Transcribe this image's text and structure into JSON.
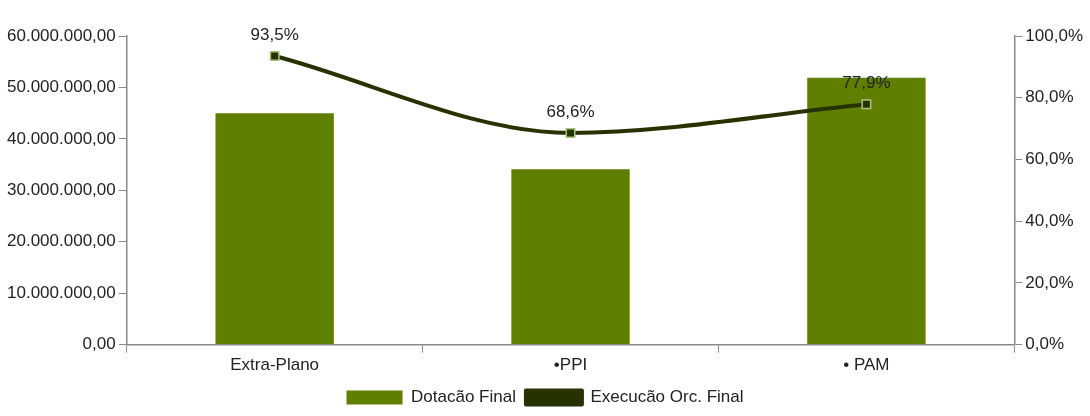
{
  "chart_data": {
    "type": "bar",
    "categories": [
      "Extra-Plano",
      "•PPI",
      "• PAM"
    ],
    "series": [
      {
        "name": "Dotacão Final",
        "color": "#5f7f00",
        "values": [
          45000000,
          34100000,
          51900000
        ]
      },
      {
        "name": "Execucão Orc. Final",
        "type": "line",
        "axis": "y2",
        "color": "#263300",
        "marker": "square",
        "values": [
          93.5,
          68.6,
          77.9
        ],
        "value_labels": [
          "93,5%",
          "68,6%",
          "77,9%"
        ]
      }
    ],
    "ylim": [
      0,
      60000000
    ],
    "yticks": [
      {
        "value": 0,
        "label": "0,00"
      },
      {
        "value": 10000000,
        "label": "10.000.000,00"
      },
      {
        "value": 20000000,
        "label": "20.000.000,00"
      },
      {
        "value": 30000000,
        "label": "30.000.000,00"
      },
      {
        "value": 40000000,
        "label": "40.000.000,00"
      },
      {
        "value": 50000000,
        "label": "50.000.000,00"
      },
      {
        "value": 60000000,
        "label": "60.000.000,00"
      }
    ],
    "y2lim": [
      0,
      100
    ],
    "y2ticks": [
      {
        "value": 0,
        "label": "0,0%"
      },
      {
        "value": 20,
        "label": "20,0%"
      },
      {
        "value": 40,
        "label": "40,0%"
      },
      {
        "value": 60,
        "label": "60,0%"
      },
      {
        "value": 80,
        "label": "80,0%"
      },
      {
        "value": 100,
        "label": "100,0%"
      }
    ],
    "grid": false,
    "legend": "bottom"
  }
}
